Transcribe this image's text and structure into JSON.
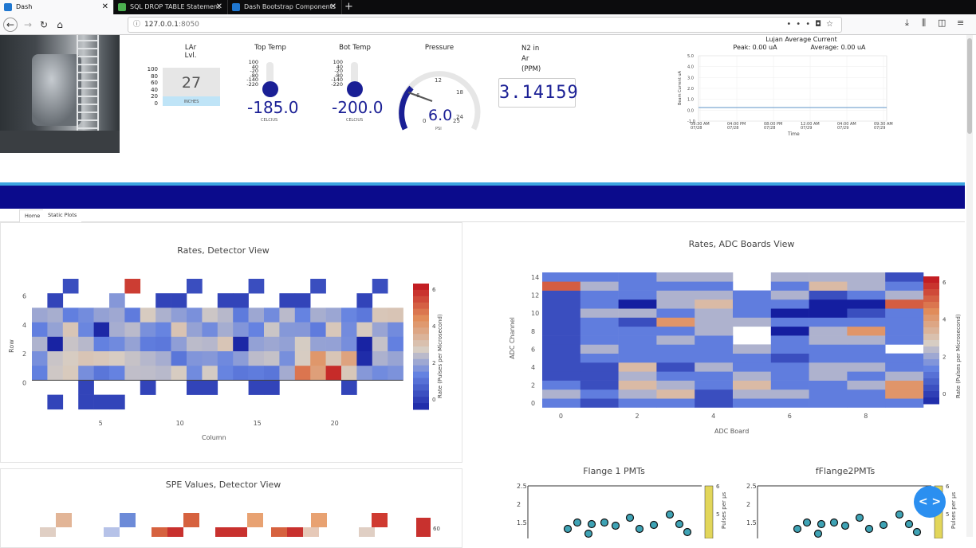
{
  "browser": {
    "tabs": [
      {
        "title": "Dash",
        "active": true,
        "favicon_color": "#1f77d0"
      },
      {
        "title": "SQL DROP TABLE Statement",
        "active": false,
        "favicon_color": "#4caf50"
      },
      {
        "title": "Dash Bootstrap Components",
        "active": false,
        "favicon_color": "#1f77d0"
      }
    ],
    "url_host": "127.0.0.1",
    "url_port": ":8050"
  },
  "header": {
    "lar": {
      "label_line1": "LAr",
      "label_line2": "Lvl.",
      "value": "27",
      "unit": "INCHES",
      "scale": [
        "100",
        "80",
        "60",
        "40",
        "20",
        "0"
      ],
      "level_percent": 27
    },
    "top_temp": {
      "label": "Top Temp",
      "value": "-185.0",
      "unit": "CELCIUS",
      "scale": [
        "100",
        "40",
        "-20",
        "-80",
        "-140",
        "-220"
      ]
    },
    "bot_temp": {
      "label": "Bot Temp",
      "value": "-200.0",
      "unit": "CELCIUS",
      "scale": [
        "100",
        "40",
        "-20",
        "-80",
        "-140",
        "-220"
      ]
    },
    "pressure": {
      "label": "Pressure",
      "value": "6.0",
      "unit": "PSI",
      "ticks": [
        "0",
        "6",
        "12",
        "18",
        "24",
        "25"
      ]
    },
    "n2": {
      "label_line1": "N2 in",
      "label_line2": "Ar",
      "label_line3": "(PPM)",
      "value": "3.14159"
    },
    "beam": {
      "title": "Lujan Average Current",
      "peak": "Peak: 0.00 uA",
      "average": "Average: 0.00 uA",
      "ylabel": "Beam Current  uA",
      "xlabel": "Time",
      "yticks": [
        "5.0",
        "4.0",
        "3.0",
        "2.0",
        "1.0",
        "0.0",
        "-1.0"
      ],
      "xticks": [
        "09:30 AM\n07/28",
        "04:00 PM\n07/28",
        "08:00 PM\n07/28",
        "12:00 AM\n07/29",
        "04:00 AM\n07/29",
        "09:30 AM\n07/29"
      ]
    }
  },
  "subnav": {
    "tabs": [
      "Home",
      "Static Plots"
    ]
  },
  "plots": {
    "detector": {
      "title": "Rates, Detector View",
      "xlabel": "Column",
      "ylabel": "Row",
      "colorbar": "Rate (Pulses per Microsecond)",
      "xticks": [
        "5",
        "10",
        "15",
        "20"
      ],
      "yticks": [
        "6",
        "4",
        "2",
        "0"
      ],
      "cticks": [
        "6",
        "4",
        "2",
        "0"
      ]
    },
    "adc": {
      "title": "Rates, ADC Boards View",
      "xlabel": "ADC Board",
      "ylabel": "ADC Channel",
      "colorbar": "Rate (Pulses per Microsecond)",
      "xticks": [
        "0",
        "2",
        "4",
        "6",
        "8"
      ],
      "yticks": [
        "14",
        "12",
        "10",
        "8",
        "6",
        "4",
        "2",
        "0"
      ],
      "cticks": [
        "6",
        "4",
        "2",
        "0"
      ]
    },
    "spe": {
      "title": "SPE Values, Detector View",
      "cticks": [
        "60"
      ]
    },
    "flange1": {
      "title": "Flange 1 PMTs",
      "yticks": [
        "2.5",
        "2",
        "1.5"
      ],
      "cbar": "Pulses per µs",
      "cticks": [
        "6",
        "5"
      ]
    },
    "flange2": {
      "title": "fFlange2PMTs",
      "yticks": [
        "2.5",
        "2",
        "1.5"
      ],
      "cbar": "Pulses per µs",
      "cticks": [
        "6",
        "5"
      ]
    }
  },
  "chart_data": [
    {
      "type": "heatmap",
      "title": "Rates, Detector View",
      "xlabel": "Column",
      "ylabel": "Row",
      "x_range": [
        1,
        24
      ],
      "y_range": [
        -1,
        7
      ],
      "colorscale": "blue-white-red",
      "z_range": [
        0,
        7
      ]
    },
    {
      "type": "heatmap",
      "title": "Rates, ADC Boards View",
      "xlabel": "ADC Board",
      "ylabel": "ADC Channel",
      "x_range": [
        0,
        9
      ],
      "y_range": [
        0,
        14
      ],
      "z_range": [
        0,
        7
      ],
      "z": [
        [
          2,
          1,
          2,
          2,
          1,
          2,
          2,
          2,
          2,
          2
        ],
        [
          3,
          2,
          3,
          4,
          1,
          3,
          3,
          2,
          2,
          5
        ],
        [
          2,
          1,
          4,
          3,
          2,
          4,
          2,
          2,
          3,
          5
        ],
        [
          1,
          1,
          3,
          2,
          2,
          3,
          2,
          3,
          2,
          3
        ],
        [
          1,
          1,
          4,
          1,
          3,
          2,
          2,
          3,
          3,
          2
        ],
        [
          1,
          2,
          2,
          2,
          2,
          2,
          1,
          2,
          2,
          2
        ],
        [
          1,
          3,
          2,
          2,
          2,
          3,
          2,
          2,
          2,
          3
        ],
        [
          1,
          2,
          2,
          3,
          2,
          3,
          2,
          3,
          3,
          2
        ],
        [
          1,
          2,
          2,
          2,
          3,
          3,
          0,
          3,
          5,
          2
        ],
        [
          1,
          2,
          1,
          5,
          3,
          3,
          2,
          2,
          2,
          2
        ],
        [
          1,
          3,
          3,
          2,
          3,
          2,
          0,
          0,
          1,
          2
        ],
        [
          1,
          2,
          0,
          3,
          4,
          2,
          2,
          0,
          0,
          6
        ],
        [
          1,
          2,
          2,
          3,
          3,
          2,
          3,
          1,
          2,
          3
        ],
        [
          6,
          3,
          2,
          2,
          2,
          3,
          2,
          4,
          3,
          2
        ],
        [
          2,
          2,
          2,
          3,
          3,
          3,
          3,
          3,
          3,
          1
        ]
      ]
    }
  ]
}
